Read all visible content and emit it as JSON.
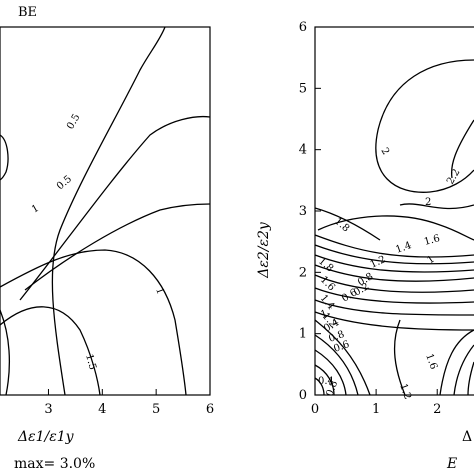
{
  "chart_data": [
    {
      "type": "contour",
      "panel_tag": "BE",
      "xlabel": "Δε1/ε1y",
      "xlim": [
        2.1,
        6
      ],
      "ylim": [
        0,
        6
      ],
      "x_ticks": [
        3,
        4,
        5,
        6
      ],
      "y_ticks": [],
      "caption": "max= 3.0%",
      "contour_labels": [
        "0.5",
        "0.5",
        "1",
        "1",
        "1.5"
      ]
    },
    {
      "type": "contour",
      "ylabel": "Δε2/ε2y",
      "xlabel": "Δ",
      "xlim": [
        0,
        2.7
      ],
      "ylim": [
        0,
        6
      ],
      "x_ticks": [
        0,
        1,
        2
      ],
      "y_ticks": [
        0,
        1,
        2,
        3,
        4,
        5,
        6
      ],
      "caption": "E",
      "contour_labels": [
        "2",
        "2.2",
        "2",
        "1.8",
        "1.6",
        "1.4",
        "1.2",
        "1",
        "0.8",
        "0.6",
        "0.4",
        "0.2",
        "1.8",
        "1.6",
        "1.4",
        "1.2",
        "1",
        "0.8",
        "0.6",
        "0.4",
        "1.6",
        "1.2",
        "0.8"
      ]
    }
  ]
}
